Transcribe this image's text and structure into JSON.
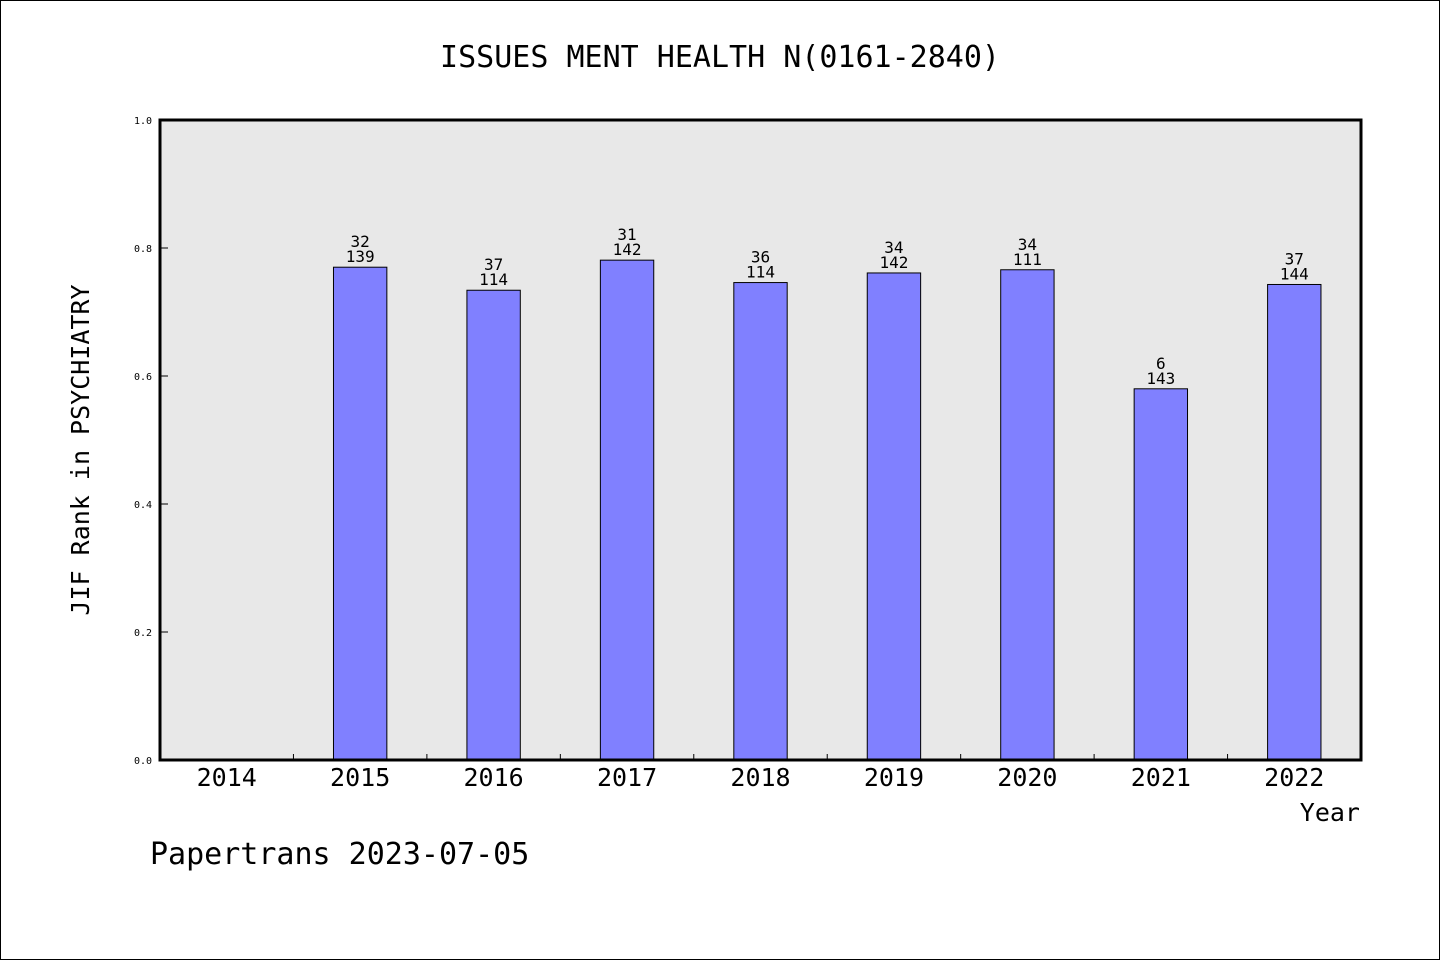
{
  "chart_data": {
    "type": "bar",
    "title": "ISSUES MENT HEALTH N(0161-2840)",
    "xlabel": "Year",
    "ylabel": "JIF Rank in PSYCHIATRY",
    "ylim": [
      0,
      1.0
    ],
    "yticks": [
      "0.0",
      "0.2",
      "0.4",
      "0.6",
      "0.8",
      "1.0"
    ],
    "categories": [
      "2014",
      "2015",
      "2016",
      "2017",
      "2018",
      "2019",
      "2020",
      "2021",
      "2022"
    ],
    "values": [
      null,
      0.77,
      0.734,
      0.781,
      0.746,
      0.761,
      0.766,
      0.58,
      0.743
    ],
    "labels_top": [
      "",
      "32",
      "37",
      "31",
      "36",
      "34",
      "34",
      "6",
      "37"
    ],
    "labels_bottom": [
      "",
      "139",
      "114",
      "142",
      "114",
      "142",
      "111",
      "143",
      "144"
    ],
    "bar_color": "#8080ff",
    "plot_background": "#e8e8e8",
    "grid": false
  },
  "footer": "Papertrans 2023-07-05"
}
